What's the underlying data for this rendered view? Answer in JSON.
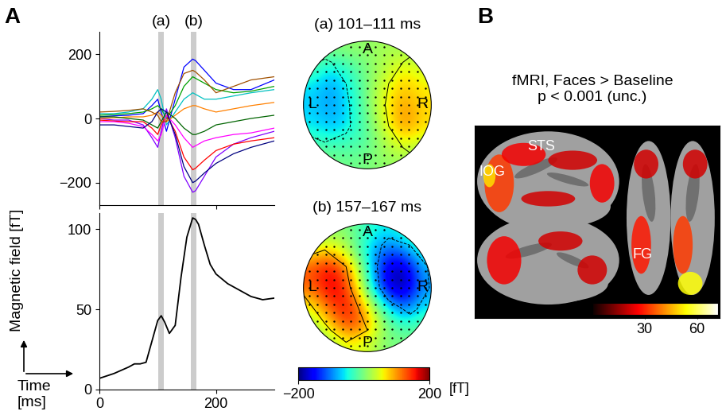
{
  "panel_labels": [
    "A",
    "B"
  ],
  "y_label": "Magnetic field [fT]",
  "x_label": "Time\n[ms]",
  "windows": [
    {
      "label": "(a)",
      "start": 101,
      "end": 111
    },
    {
      "label": "(b)",
      "start": 157,
      "end": 167
    }
  ],
  "chart_data": [
    {
      "type": "line",
      "x": [
        0,
        25,
        50,
        75,
        90,
        100,
        106,
        115,
        130,
        145,
        160,
        165,
        180,
        200,
        230,
        260,
        300
      ],
      "series": [
        {
          "color": "#0000ff",
          "values": [
            5,
            8,
            10,
            15,
            40,
            60,
            20,
            -40,
            60,
            160,
            185,
            180,
            150,
            110,
            90,
            90,
            120
          ]
        },
        {
          "color": "#8000ff",
          "values": [
            0,
            -5,
            -5,
            -20,
            -60,
            -90,
            -40,
            30,
            -60,
            -180,
            -230,
            -225,
            -180,
            -120,
            -80,
            -60,
            -40
          ]
        },
        {
          "color": "#00a000",
          "values": [
            10,
            12,
            15,
            20,
            30,
            40,
            30,
            0,
            40,
            100,
            130,
            125,
            110,
            90,
            80,
            85,
            100
          ]
        },
        {
          "color": "#ff0000",
          "values": [
            -5,
            -8,
            -10,
            -10,
            -30,
            -50,
            -20,
            10,
            -40,
            -120,
            -160,
            -155,
            -130,
            -100,
            -80,
            -70,
            -60
          ]
        },
        {
          "color": "#00c0c0",
          "values": [
            15,
            15,
            20,
            30,
            60,
            90,
            60,
            -20,
            20,
            60,
            80,
            75,
            60,
            60,
            70,
            80,
            90
          ]
        },
        {
          "color": "#ff00ff",
          "values": [
            -10,
            -10,
            -15,
            -25,
            -50,
            -70,
            -50,
            10,
            -20,
            -60,
            -90,
            -85,
            -70,
            -60,
            -50,
            -45,
            -30
          ]
        },
        {
          "color": "#ff8000",
          "values": [
            0,
            2,
            5,
            5,
            10,
            20,
            10,
            -10,
            10,
            30,
            40,
            40,
            30,
            20,
            30,
            40,
            50
          ]
        },
        {
          "color": "#006400",
          "values": [
            5,
            5,
            0,
            -5,
            -20,
            -30,
            -10,
            20,
            0,
            -30,
            -50,
            -50,
            -40,
            -20,
            -10,
            0,
            10
          ]
        },
        {
          "color": "#a05000",
          "values": [
            20,
            22,
            25,
            30,
            20,
            10,
            -10,
            -10,
            80,
            140,
            150,
            145,
            120,
            80,
            100,
            120,
            130
          ]
        },
        {
          "color": "#000080",
          "values": [
            -20,
            -20,
            -25,
            -30,
            -10,
            20,
            30,
            20,
            -50,
            -150,
            -200,
            -195,
            -170,
            -140,
            -110,
            -90,
            -70
          ]
        }
      ],
      "xlim": [
        0,
        300
      ],
      "xticks": [
        0,
        200
      ],
      "ylim": [
        -270,
        270
      ],
      "yticks": [
        {
          "value": -200,
          "label": "−200"
        },
        0,
        200
      ],
      "tick_labels": "y"
    },
    {
      "type": "line",
      "x": [
        0,
        25,
        50,
        60,
        70,
        80,
        90,
        100,
        106,
        112,
        120,
        130,
        140,
        150,
        160,
        165,
        170,
        180,
        190,
        200,
        220,
        240,
        260,
        280,
        300
      ],
      "values": [
        7,
        10,
        14,
        16,
        16,
        17,
        30,
        43,
        46,
        42,
        35,
        40,
        70,
        95,
        107,
        106,
        103,
        90,
        78,
        72,
        66,
        62,
        58,
        56,
        57
      ],
      "color": "#000000",
      "xlim": [
        0,
        300
      ],
      "xticks": [
        0,
        200
      ],
      "ylim": [
        0,
        110
      ],
      "yticks": [
        0,
        50,
        100
      ]
    },
    {
      "type": "heatmap",
      "title": "(a) 101–111 ms",
      "head_labels": [
        "A",
        "L",
        "R",
        "P"
      ],
      "cells": [
        [
          0,
          0,
          10,
          10,
          20,
          20,
          0
        ],
        [
          -20,
          -60,
          -30,
          0,
          30,
          60,
          40
        ],
        [
          -60,
          -90,
          -50,
          0,
          50,
          80,
          60
        ],
        [
          -70,
          -90,
          -60,
          0,
          60,
          100,
          70
        ],
        [
          -60,
          -80,
          -60,
          -10,
          50,
          110,
          70
        ],
        [
          -30,
          -40,
          -30,
          -20,
          30,
          60,
          40
        ],
        [
          0,
          0,
          -10,
          0,
          10,
          20,
          0
        ]
      ],
      "contours": [
        -50,
        50
      ]
    },
    {
      "type": "heatmap",
      "title": "(b) 157–167 ms",
      "head_labels": [
        "A",
        "L",
        "R",
        "P"
      ],
      "cells": [
        [
          0,
          10,
          0,
          -40,
          -60,
          -40,
          0
        ],
        [
          60,
          80,
          20,
          -60,
          -120,
          -100,
          -40
        ],
        [
          130,
          170,
          100,
          -40,
          -170,
          -190,
          -80
        ],
        [
          120,
          180,
          130,
          -20,
          -160,
          -200,
          -90
        ],
        [
          60,
          140,
          160,
          60,
          -60,
          -120,
          -60
        ],
        [
          20,
          80,
          150,
          100,
          0,
          -40,
          -20
        ],
        [
          0,
          20,
          60,
          40,
          0,
          0,
          0
        ]
      ],
      "contours": [
        -100,
        100
      ]
    }
  ],
  "topo_colorbar": {
    "range": [
      -200,
      200
    ],
    "ticks": [
      {
        "value": -200,
        "label": "−200"
      },
      200
    ],
    "label": "[fT]"
  },
  "fmri": {
    "title": "fMRI, Faces > Baseline\np < 0.001 (unc.)",
    "labels": [
      "STS",
      "IOG",
      "FG"
    ],
    "colorbar": {
      "range": [
        0,
        72
      ],
      "ticks": [
        30,
        60
      ]
    }
  }
}
